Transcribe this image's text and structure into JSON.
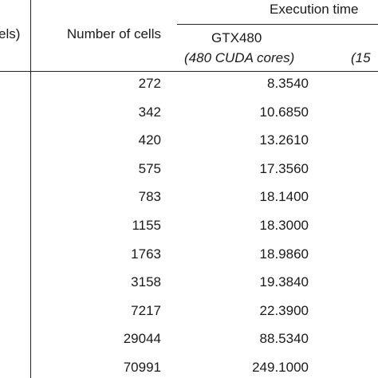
{
  "table": {
    "header": {
      "first_column": "els)",
      "group": "Execution time",
      "cells": "Number of cells",
      "gpu1": "GTX480",
      "gpu1_note": "(480 CUDA cores)",
      "gpu2_note": "(15"
    },
    "rows": [
      [
        "272",
        "8.3540"
      ],
      [
        "342",
        "10.6850"
      ],
      [
        "420",
        "13.2610"
      ],
      [
        "575",
        "17.3560"
      ],
      [
        "783",
        "18.1400"
      ],
      [
        "1155",
        "18.3000"
      ],
      [
        "1763",
        "18.9860"
      ],
      [
        "3158",
        "19.3840"
      ],
      [
        "7217",
        "22.3900"
      ],
      [
        "29044",
        "88.5340"
      ],
      [
        "70991",
        "249.1000"
      ]
    ]
  }
}
